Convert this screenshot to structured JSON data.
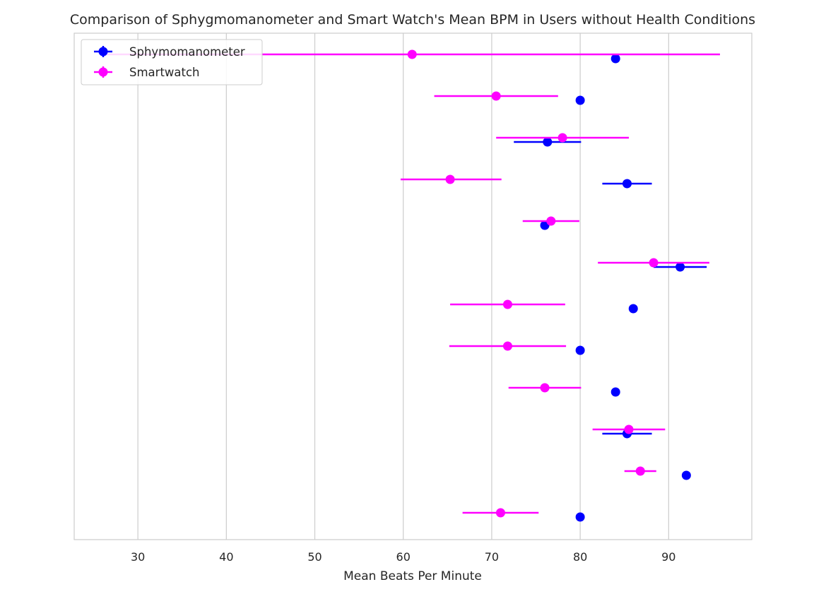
{
  "chart_data": {
    "type": "scatter",
    "title": "Comparison of Sphygmomanometer and Smart Watch's Mean BPM in Users without Health Conditions",
    "xlabel": "Mean Beats Per Minute",
    "ylabel": "",
    "xlim": [
      22.8,
      99.4
    ],
    "xticks": [
      "30",
      "40",
      "50",
      "60",
      "70",
      "80",
      "90"
    ],
    "grid": "vertical",
    "legend_position": "upper-left",
    "series": [
      {
        "name": "Sphymomanometer",
        "color": "#0000ff",
        "means": [
          84.0,
          80.0,
          76.3,
          85.3,
          76.0,
          91.3,
          86.0,
          80.0,
          84.0,
          85.3,
          92.0,
          80.0
        ],
        "err_low": [
          84.0,
          80.0,
          72.5,
          82.5,
          76.0,
          88.3,
          86.0,
          80.0,
          84.0,
          82.5,
          92.0,
          80.0
        ],
        "err_high": [
          84.0,
          80.0,
          80.1,
          88.1,
          76.0,
          94.3,
          86.0,
          80.0,
          84.0,
          88.1,
          92.0,
          80.0
        ]
      },
      {
        "name": "Smartwatch",
        "color": "#ff00ff",
        "means": [
          61.0,
          70.5,
          78.0,
          65.3,
          76.7,
          88.3,
          71.8,
          71.8,
          76.0,
          85.5,
          86.8,
          71.0
        ],
        "err_low": [
          26.2,
          63.5,
          70.5,
          59.7,
          73.5,
          82.0,
          65.3,
          65.2,
          71.9,
          81.4,
          85.0,
          66.7
        ],
        "err_high": [
          95.8,
          77.5,
          85.5,
          71.1,
          79.9,
          94.6,
          78.3,
          78.4,
          80.1,
          89.6,
          88.6,
          75.3
        ]
      }
    ]
  }
}
